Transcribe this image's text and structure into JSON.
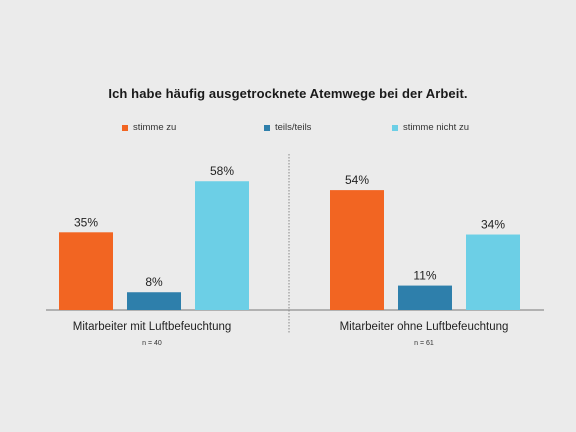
{
  "chart_data": {
    "type": "bar",
    "title": "Ich habe häufig ausgetrocknete Atemwege bei der Arbeit.",
    "series": [
      {
        "name": "stimme zu",
        "color": "#f26522"
      },
      {
        "name": "teils/teils",
        "color": "#2e7fab"
      },
      {
        "name": "stimme nicht zu",
        "color": "#6ccfe6"
      }
    ],
    "groups": [
      {
        "label": "Mitarbeiter mit Luftbefeuchtung",
        "n_label": "n = 40",
        "values": [
          35,
          8,
          58
        ]
      },
      {
        "label": "Mitarbeiter ohne Luftbefeuchtung",
        "n_label": "n = 61",
        "values": [
          54,
          11,
          34
        ]
      }
    ],
    "value_suffix": "%",
    "ylim": [
      0,
      100
    ],
    "grid": false,
    "legend_position": "top"
  }
}
